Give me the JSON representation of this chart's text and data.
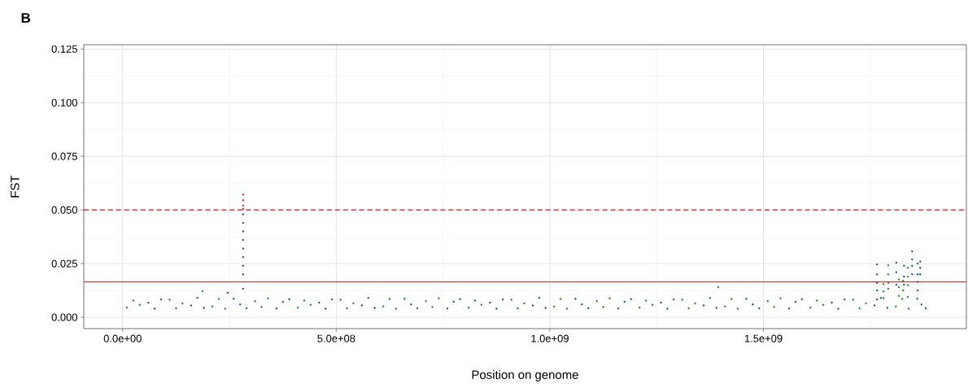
{
  "chart_data": {
    "type": "scatter",
    "title": "B",
    "xlabel": "Position on genome",
    "ylabel": "FST",
    "xlim": [
      -91000000,
      1975000000
    ],
    "ylim": [
      -0.0053,
      0.127
    ],
    "xticks": [
      {
        "value": 0,
        "label": "0.0e+00"
      },
      {
        "value": 500000000,
        "label": "5.0e+08"
      },
      {
        "value": 1000000000,
        "label": "1.0e+09"
      },
      {
        "value": 1500000000,
        "label": "1.5e+09"
      }
    ],
    "yticks": [
      {
        "value": 0,
        "label": "0.000"
      },
      {
        "value": 0.025,
        "label": "0.025"
      },
      {
        "value": 0.05,
        "label": "0.050"
      },
      {
        "value": 0.075,
        "label": "0.075"
      },
      {
        "value": 0.1,
        "label": "0.100"
      },
      {
        "value": 0.125,
        "label": "0.125"
      }
    ],
    "grid": true,
    "ref_lines": [
      {
        "axis": "y",
        "value": 0.05,
        "color": "#e41a1c",
        "line_style": "dashed"
      },
      {
        "axis": "y",
        "value": 0.0165,
        "color": "#e41a1c",
        "line_style": "solid"
      }
    ],
    "series": [
      {
        "color": "#1a8a1a",
        "x": [
          10000000.0,
          25000000.0,
          40000000.0,
          110000000.0,
          125000000.0,
          140000000.0,
          210000000.0,
          225000000.0,
          240000000.0,
          310000000.0,
          325000000.0,
          340000000.0,
          410000000.0,
          425000000.0,
          440000000.0,
          510000000.0,
          525000000.0,
          540000000.0,
          610000000.0,
          625000000.0,
          640000000.0,
          710000000.0,
          725000000.0,
          740000000.0,
          810000000.0,
          825000000.0,
          840000000.0,
          910000000.0,
          925000000.0,
          940000000.0,
          1010000000.0,
          1025000000.0,
          1040000000.0,
          1110000000.0,
          1125000000.0,
          1140000000.0,
          1210000000.0,
          1225000000.0,
          1240000000.0,
          1310000000.0,
          1325000000.0,
          1340000000.0,
          1410000000.0,
          1425000000.0,
          1440000000.0,
          1510000000.0,
          1525000000.0,
          1540000000.0,
          1610000000.0,
          1625000000.0,
          1640000000.0,
          1710000000.0,
          1725000000.0,
          1740000000.0,
          1810000000.0,
          1825000000.0,
          1840000000.0,
          187000000.0,
          1394000000.0,
          1781000000.0,
          1781000000.0,
          1781000000.0,
          1792000000.0,
          1792000000.0,
          1792000000.0,
          1792000000.0,
          1817000000.0,
          1817000000.0,
          1817000000.0,
          1827000000.0,
          1827000000.0,
          1838000000.0,
          1838000000.0,
          1838000000.0,
          1838000000.0
        ],
        "values": [
          0.0045,
          0.0078,
          0.0058,
          0.0082,
          0.0042,
          0.0065,
          0.005,
          0.0085,
          0.004,
          0.0075,
          0.0048,
          0.0088,
          0.0045,
          0.0078,
          0.0058,
          0.0082,
          0.0042,
          0.0065,
          0.005,
          0.0085,
          0.004,
          0.0075,
          0.0048,
          0.0088,
          0.0045,
          0.0078,
          0.0058,
          0.0082,
          0.0042,
          0.0065,
          0.005,
          0.0085,
          0.004,
          0.0075,
          0.0048,
          0.0088,
          0.0045,
          0.0078,
          0.0058,
          0.0082,
          0.0042,
          0.0065,
          0.005,
          0.0085,
          0.004,
          0.0075,
          0.0048,
          0.0088,
          0.0045,
          0.0078,
          0.0058,
          0.0082,
          0.0042,
          0.0065,
          0.005,
          0.0085,
          0.004,
          0.0121,
          0.014,
          0.0155,
          0.012,
          0.0088,
          0.0242,
          0.02,
          0.016,
          0.0133,
          0.0176,
          0.014,
          0.01,
          0.017,
          0.0125,
          0.023,
          0.019,
          0.015,
          0.0095
        ]
      },
      {
        "color": "#1a4f8b",
        "x": [
          60000000.0,
          75000000.0,
          90000000.0,
          160000000.0,
          175000000.0,
          190000000.0,
          260000000.0,
          275000000.0,
          290000000.0,
          360000000.0,
          375000000.0,
          390000000.0,
          460000000.0,
          475000000.0,
          490000000.0,
          560000000.0,
          575000000.0,
          590000000.0,
          660000000.0,
          675000000.0,
          690000000.0,
          760000000.0,
          775000000.0,
          790000000.0,
          860000000.0,
          875000000.0,
          890000000.0,
          960000000.0,
          975000000.0,
          990000000.0,
          1060000000.0,
          1075000000.0,
          1090000000.0,
          1160000000.0,
          1175000000.0,
          1190000000.0,
          1260000000.0,
          1275000000.0,
          1290000000.0,
          1360000000.0,
          1375000000.0,
          1390000000.0,
          1460000000.0,
          1475000000.0,
          1490000000.0,
          1560000000.0,
          1575000000.0,
          1590000000.0,
          1660000000.0,
          1675000000.0,
          1690000000.0,
          1760000000.0,
          1775000000.0,
          1790000000.0,
          1860000000.0,
          1870000000.0,
          1880000000.0,
          246000000.0,
          282000000.0,
          282000000.0,
          282000000.0,
          282000000.0,
          282000000.0,
          282000000.0,
          282000000.0,
          282000000.0,
          282000000.0,
          1766000000.0,
          1766000000.0,
          1766000000.0,
          1766000000.0,
          1766000000.0,
          1811000000.0,
          1811000000.0,
          1811000000.0,
          1829000000.0,
          1829000000.0,
          1829000000.0,
          1848000000.0,
          1848000000.0,
          1848000000.0,
          1848000000.0,
          1861000000.0,
          1861000000.0,
          1861000000.0,
          1861000000.0,
          1867000000.0,
          1867000000.0,
          1867000000.0
        ],
        "values": [
          0.0068,
          0.004,
          0.0083,
          0.0055,
          0.009,
          0.0044,
          0.0086,
          0.006,
          0.0042,
          0.0041,
          0.0072,
          0.0084,
          0.0068,
          0.004,
          0.0083,
          0.0055,
          0.009,
          0.0044,
          0.0086,
          0.006,
          0.0042,
          0.0041,
          0.0072,
          0.0084,
          0.0068,
          0.004,
          0.0083,
          0.0055,
          0.009,
          0.0044,
          0.0086,
          0.006,
          0.0042,
          0.0041,
          0.0072,
          0.0084,
          0.0068,
          0.004,
          0.0083,
          0.0055,
          0.009,
          0.0044,
          0.0086,
          0.006,
          0.0042,
          0.0041,
          0.0072,
          0.0084,
          0.0068,
          0.004,
          0.0083,
          0.0055,
          0.009,
          0.0044,
          0.0086,
          0.006,
          0.0042,
          0.0114,
          0.0133,
          0.02,
          0.024,
          0.028,
          0.032,
          0.036,
          0.04,
          0.044,
          0.048,
          0.0246,
          0.02,
          0.016,
          0.0125,
          0.0083,
          0.0254,
          0.021,
          0.0152,
          0.024,
          0.019,
          0.0152,
          0.0307,
          0.027,
          0.024,
          0.0201,
          0.025,
          0.02,
          0.0165,
          0.0125,
          0.026,
          0.023,
          0.02
        ]
      },
      {
        "color": "#e41a1c",
        "x": [
          282000000.0,
          282000000.0,
          282000000.0,
          282000000.0
        ],
        "values": [
          0.0505,
          0.052,
          0.0545,
          0.0572
        ]
      }
    ]
  }
}
